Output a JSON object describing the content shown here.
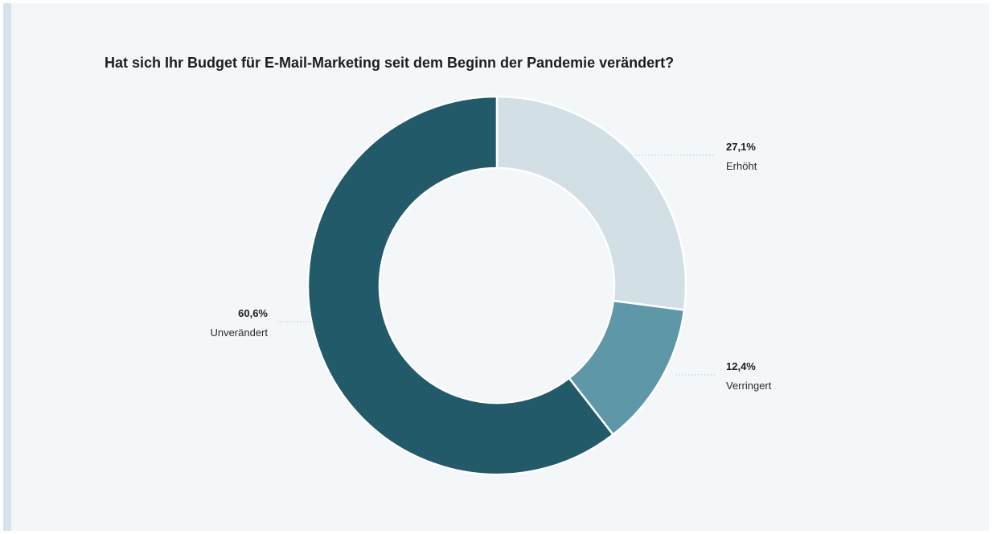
{
  "chart_data": {
    "type": "pie",
    "title": "Hat sich Ihr Budget für E-Mail-Marketing seit dem Beginn der Pandemie verändert?",
    "slices": [
      {
        "label": "Erhöht",
        "value": 27.1,
        "display": "27,1%",
        "color": "#d2e0e6"
      },
      {
        "label": "Verringert",
        "value": 12.4,
        "display": "12,4%",
        "color": "#5e97a7"
      },
      {
        "label": "Unverändert",
        "value": 60.6,
        "display": "60,6%",
        "color": "#225a69"
      }
    ],
    "donut": true,
    "legend": "none"
  }
}
